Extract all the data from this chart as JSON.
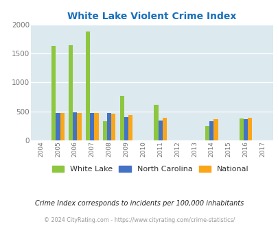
{
  "title": "White Lake Violent Crime Index",
  "years": [
    2004,
    2005,
    2006,
    2007,
    2008,
    2009,
    2010,
    2011,
    2012,
    2013,
    2014,
    2015,
    2016,
    2017
  ],
  "white_lake": [
    0,
    1640,
    1650,
    1880,
    330,
    770,
    0,
    615,
    0,
    0,
    250,
    0,
    380,
    0
  ],
  "north_carolina": [
    0,
    475,
    480,
    475,
    470,
    400,
    0,
    340,
    0,
    0,
    325,
    0,
    365,
    0
  ],
  "national": [
    0,
    475,
    475,
    470,
    455,
    430,
    0,
    385,
    0,
    0,
    365,
    0,
    390,
    0
  ],
  "color_wl": "#8dc63f",
  "color_nc": "#4472c4",
  "color_nat": "#faa619",
  "bg_color": "#dce9ef",
  "ylim": [
    0,
    2000
  ],
  "yticks": [
    0,
    500,
    1000,
    1500,
    2000
  ],
  "footnote": "Crime Index corresponds to incidents per 100,000 inhabitants",
  "copyright": "© 2024 CityRating.com - https://www.cityrating.com/crime-statistics/",
  "bar_width": 0.25
}
